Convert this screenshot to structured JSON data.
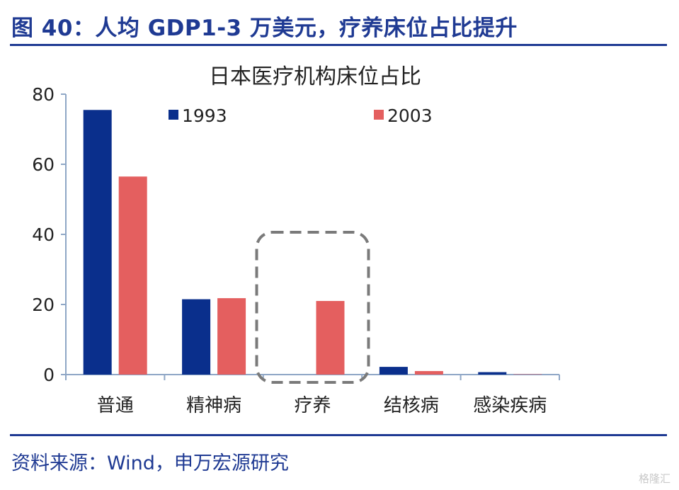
{
  "header": {
    "title": "图 40：人均 GDP1-3 万美元，疗养床位占比提升"
  },
  "footer": {
    "source": "资料来源：Wind，申万宏源研究",
    "watermark": "格隆汇"
  },
  "colors": {
    "series_1993": "#0a2f8c",
    "series_2003": "#e45f5f",
    "accent": "#1f3a93",
    "highlight_box": "#7a7a7a"
  },
  "chart_data": {
    "type": "bar",
    "title": "日本医疗机构床位占比",
    "categories": [
      "普通",
      "精神病",
      "疗养",
      "结核病",
      "感染疾病"
    ],
    "series": [
      {
        "name": "1993",
        "values": [
          75.5,
          21.5,
          0,
          2.2,
          0.7
        ]
      },
      {
        "name": "2003",
        "values": [
          56.5,
          21.8,
          21.0,
          1.0,
          0.1
        ]
      }
    ],
    "ylim": [
      0,
      80
    ],
    "yticks": [
      0,
      20,
      40,
      60,
      80
    ],
    "xlabel": "",
    "ylabel": "",
    "legend_position": "top",
    "grid": false,
    "highlight_category": "疗养"
  }
}
